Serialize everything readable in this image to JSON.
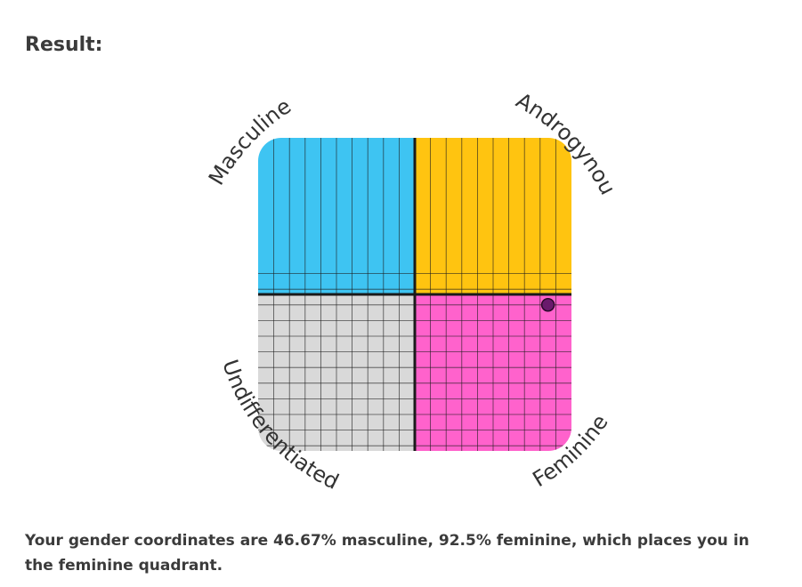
{
  "heading": "Result:",
  "quadrants": {
    "top_left": {
      "label": "Masculine",
      "color": "#3ec4f2"
    },
    "top_right": {
      "label": "Androgynous",
      "color": "#ffc410"
    },
    "bottom_left": {
      "label": "Undifferentiated",
      "color": "#d9d9d9"
    },
    "bottom_right": {
      "label": "Feminine",
      "color": "#ff62cc"
    }
  },
  "chart_data": {
    "type": "scatter",
    "grid": true,
    "points": [
      {
        "masculine_percent": 46.67,
        "feminine_percent": 92.5
      }
    ],
    "marker_color": "#6a1a6c"
  },
  "result": {
    "text": "Your gender coordinates are 46.67% masculine, 92.5% feminine, which places you in the feminine quadrant."
  }
}
